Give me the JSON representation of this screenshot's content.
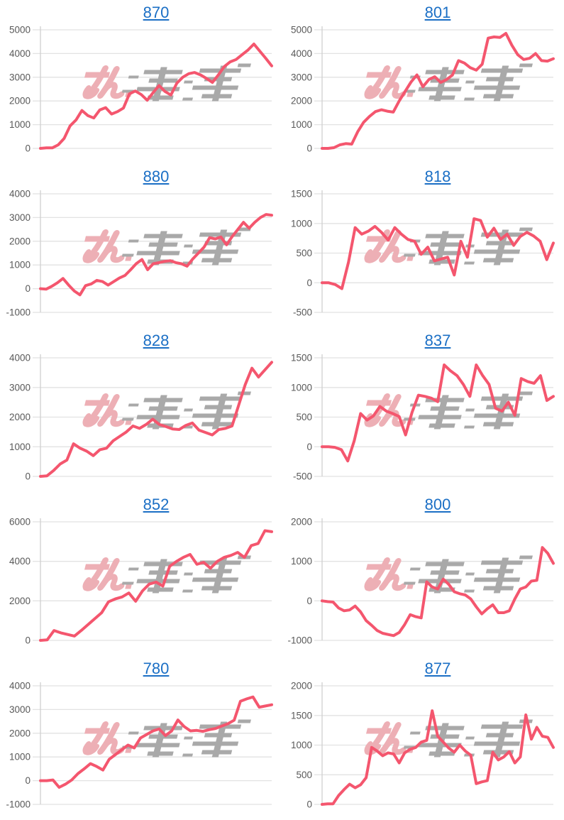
{
  "page": {
    "background": "#ffffff"
  },
  "colors": {
    "line": "#f4566e",
    "title_link": "#1b6fc5",
    "axis_label": "#595959",
    "gridline": "#e2e2e2",
    "axis_line": "#cfcfcf"
  },
  "watermark": {
    "text_pink": "みん",
    "text_gray": "レポ",
    "pink": "#edafb5",
    "gray": "#a9a9a9"
  },
  "chart_data": [
    {
      "type": "line",
      "title": "870",
      "xlabel": "",
      "ylabel": "",
      "ylim": [
        0,
        5000
      ],
      "ytick_step": 1000,
      "grid": true,
      "legend": false,
      "values": [
        0,
        20,
        20,
        150,
        420,
        950,
        1200,
        1600,
        1380,
        1280,
        1620,
        1720,
        1450,
        1550,
        1700,
        2300,
        2420,
        2270,
        2030,
        2350,
        2650,
        2400,
        2250,
        2750,
        3000,
        3150,
        3200,
        3100,
        2950,
        2780,
        3100,
        3450,
        3650,
        3750,
        3950,
        4150,
        4400,
        4100,
        3800,
        3480
      ]
    },
    {
      "type": "line",
      "title": "801",
      "xlabel": "",
      "ylabel": "",
      "ylim": [
        0,
        5000
      ],
      "ytick_step": 1000,
      "grid": true,
      "legend": false,
      "values": [
        0,
        0,
        30,
        150,
        200,
        180,
        700,
        1100,
        1350,
        1550,
        1630,
        1570,
        1530,
        2000,
        2400,
        2800,
        3100,
        2600,
        2900,
        3020,
        2780,
        2900,
        3100,
        3700,
        3600,
        3400,
        3300,
        3550,
        4650,
        4700,
        4680,
        4850,
        4350,
        3950,
        3750,
        3800,
        4000,
        3700,
        3680,
        3780
      ]
    },
    {
      "type": "line",
      "title": "880",
      "xlabel": "",
      "ylabel": "",
      "ylim": [
        -1000,
        4000
      ],
      "ytick_step": 1000,
      "grid": true,
      "legend": false,
      "values": [
        0,
        -20,
        100,
        250,
        430,
        150,
        -100,
        -260,
        130,
        200,
        350,
        300,
        150,
        300,
        450,
        560,
        800,
        1060,
        1230,
        800,
        1050,
        1100,
        1150,
        1180,
        1100,
        1050,
        950,
        1250,
        1500,
        1750,
        2150,
        2100,
        2180,
        1850,
        2200,
        2500,
        2800,
        2550,
        2800,
        3000,
        3130,
        3100
      ]
    },
    {
      "type": "line",
      "title": "818",
      "xlabel": "",
      "ylabel": "",
      "ylim": [
        -500,
        1500
      ],
      "ytick_step": 500,
      "grid": true,
      "legend": false,
      "values": [
        0,
        0,
        -30,
        -100,
        350,
        930,
        820,
        870,
        950,
        850,
        720,
        930,
        820,
        730,
        700,
        480,
        600,
        370,
        400,
        430,
        130,
        700,
        430,
        1080,
        1050,
        770,
        920,
        730,
        820,
        630,
        780,
        850,
        790,
        700,
        390,
        670
      ]
    },
    {
      "type": "line",
      "title": "828",
      "xlabel": "",
      "ylabel": "",
      "ylim": [
        0,
        4000
      ],
      "ytick_step": 1000,
      "grid": true,
      "legend": false,
      "values": [
        0,
        20,
        200,
        420,
        550,
        1100,
        950,
        850,
        700,
        900,
        950,
        1200,
        1350,
        1500,
        1700,
        1620,
        1750,
        1930,
        1750,
        1680,
        1600,
        1580,
        1720,
        1800,
        1560,
        1480,
        1400,
        1580,
        1620,
        1700,
        2400,
        3100,
        3650,
        3350,
        3600,
        3850
      ]
    },
    {
      "type": "line",
      "title": "837",
      "xlabel": "",
      "ylabel": "",
      "ylim": [
        -500,
        1500
      ],
      "ytick_step": 500,
      "grid": true,
      "legend": false,
      "values": [
        0,
        0,
        -10,
        -50,
        -240,
        100,
        560,
        450,
        520,
        680,
        600,
        560,
        510,
        200,
        580,
        870,
        850,
        820,
        760,
        1380,
        1280,
        1200,
        1050,
        850,
        1380,
        1200,
        1050,
        650,
        600,
        750,
        530,
        1150,
        1100,
        1070,
        1200,
        780,
        850
      ]
    },
    {
      "type": "line",
      "title": "852",
      "xlabel": "",
      "ylabel": "",
      "ylim": [
        0,
        6000
      ],
      "ytick_step": 2000,
      "grid": true,
      "legend": false,
      "values": [
        0,
        30,
        500,
        380,
        300,
        220,
        500,
        800,
        1100,
        1400,
        1950,
        2100,
        2200,
        2400,
        1980,
        2500,
        2850,
        2950,
        2750,
        3750,
        4000,
        4200,
        4350,
        3850,
        3950,
        3650,
        4000,
        4200,
        4300,
        4450,
        4200,
        4800,
        4900,
        5550,
        5500
      ]
    },
    {
      "type": "line",
      "title": "800",
      "xlabel": "",
      "ylabel": "",
      "ylim": [
        -1000,
        2000
      ],
      "ytick_step": 1000,
      "grid": true,
      "legend": false,
      "values": [
        0,
        -20,
        -30,
        -180,
        -250,
        -230,
        -130,
        -280,
        -500,
        -620,
        -750,
        -820,
        -850,
        -880,
        -800,
        -600,
        -350,
        -400,
        -430,
        480,
        350,
        300,
        550,
        420,
        230,
        180,
        150,
        50,
        -150,
        -330,
        -200,
        -100,
        -300,
        -300,
        -250,
        50,
        300,
        350,
        500,
        520,
        1350,
        1200,
        950
      ]
    },
    {
      "type": "line",
      "title": "780",
      "xlabel": "",
      "ylabel": "",
      "ylim": [
        -1000,
        4000
      ],
      "ytick_step": 1000,
      "grid": true,
      "legend": false,
      "values": [
        0,
        0,
        30,
        -280,
        -150,
        30,
        300,
        500,
        720,
        600,
        450,
        900,
        1100,
        1300,
        1500,
        1380,
        1800,
        1950,
        2100,
        2180,
        1900,
        2100,
        2560,
        2280,
        2100,
        2120,
        2080,
        2150,
        2200,
        2300,
        2400,
        2550,
        3350,
        3450,
        3530,
        3100,
        3150,
        3200
      ]
    },
    {
      "type": "line",
      "title": "877",
      "xlabel": "",
      "ylabel": "",
      "ylim": [
        0,
        2000
      ],
      "ytick_step": 500,
      "grid": true,
      "legend": false,
      "values": [
        0,
        10,
        10,
        150,
        250,
        340,
        280,
        330,
        450,
        960,
        900,
        820,
        870,
        850,
        700,
        870,
        930,
        960,
        1050,
        1080,
        1580,
        1150,
        1050,
        950,
        880,
        1000,
        900,
        830,
        350,
        380,
        400,
        880,
        750,
        800,
        890,
        700,
        800,
        1510,
        1100,
        1300,
        1150,
        1130,
        960
      ]
    }
  ]
}
